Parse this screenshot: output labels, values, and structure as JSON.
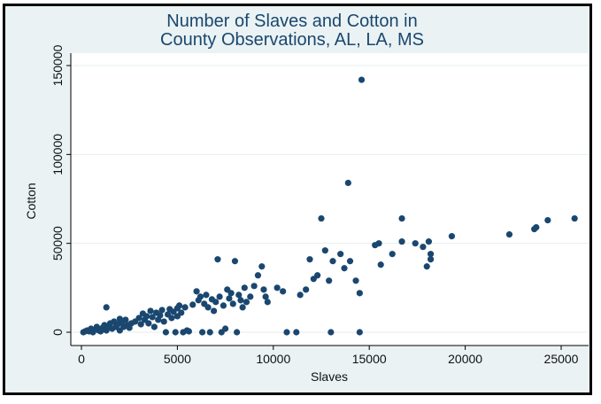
{
  "chart_data": {
    "type": "scatter",
    "title": "Number of Slaves and Cotton in",
    "subtitle": "County Observations, AL, LA, MS",
    "xlabel": "Slaves",
    "ylabel": "Cotton",
    "xlim": [
      0,
      26000
    ],
    "ylim": [
      0,
      150000
    ],
    "xticks": [
      0,
      5000,
      10000,
      15000,
      20000,
      25000
    ],
    "yticks": [
      0,
      50000,
      100000,
      150000
    ],
    "grid": true,
    "series": [
      {
        "color": "#1a476f",
        "points": [
          [
            100,
            0
          ],
          [
            200,
            500
          ],
          [
            300,
            1000
          ],
          [
            400,
            500
          ],
          [
            500,
            2000
          ],
          [
            600,
            0
          ],
          [
            700,
            1500
          ],
          [
            800,
            3000
          ],
          [
            900,
            1000
          ],
          [
            1000,
            500
          ],
          [
            1100,
            2500
          ],
          [
            1200,
            4000
          ],
          [
            1300,
            14000
          ],
          [
            1300,
            1000
          ],
          [
            1400,
            3500
          ],
          [
            1500,
            5000
          ],
          [
            1600,
            2000
          ],
          [
            1700,
            6000
          ],
          [
            1800,
            3000
          ],
          [
            1900,
            4500
          ],
          [
            2000,
            7500
          ],
          [
            2000,
            1000
          ],
          [
            2100,
            5500
          ],
          [
            2200,
            3000
          ],
          [
            2300,
            7000
          ],
          [
            2400,
            4000
          ],
          [
            2500,
            2500
          ],
          [
            2600,
            5000
          ],
          [
            2800,
            6000
          ],
          [
            3000,
            8000
          ],
          [
            3100,
            4500
          ],
          [
            3200,
            10500
          ],
          [
            3300,
            7000
          ],
          [
            3400,
            9000
          ],
          [
            3500,
            5000
          ],
          [
            3600,
            12000
          ],
          [
            3700,
            8500
          ],
          [
            3800,
            3000
          ],
          [
            3900,
            11000
          ],
          [
            4000,
            7000
          ],
          [
            4100,
            9500
          ],
          [
            4200,
            12500
          ],
          [
            4300,
            6000
          ],
          [
            4400,
            0
          ],
          [
            4500,
            10000
          ],
          [
            4600,
            13000
          ],
          [
            4700,
            8000
          ],
          [
            4800,
            11500
          ],
          [
            4900,
            0
          ],
          [
            5000,
            13500
          ],
          [
            5000,
            9000
          ],
          [
            5100,
            15000
          ],
          [
            5200,
            11000
          ],
          [
            5300,
            0
          ],
          [
            5400,
            14000
          ],
          [
            5500,
            1000
          ],
          [
            5600,
            500
          ],
          [
            5800,
            15500
          ],
          [
            6000,
            23000
          ],
          [
            6100,
            18000
          ],
          [
            6200,
            20000
          ],
          [
            6300,
            0
          ],
          [
            6400,
            16000
          ],
          [
            6500,
            21000
          ],
          [
            6600,
            14000
          ],
          [
            6700,
            0
          ],
          [
            6800,
            18500
          ],
          [
            6900,
            12000
          ],
          [
            7000,
            17000
          ],
          [
            7100,
            41000
          ],
          [
            7200,
            20000
          ],
          [
            7300,
            0
          ],
          [
            7400,
            15000
          ],
          [
            7500,
            2000
          ],
          [
            7600,
            24000
          ],
          [
            7700,
            19000
          ],
          [
            7800,
            22000
          ],
          [
            7900,
            16000
          ],
          [
            8000,
            40000
          ],
          [
            8100,
            0
          ],
          [
            8200,
            21000
          ],
          [
            8300,
            18000
          ],
          [
            8400,
            14000
          ],
          [
            8500,
            25000
          ],
          [
            8600,
            17000
          ],
          [
            8800,
            20000
          ],
          [
            9000,
            26000
          ],
          [
            9200,
            32000
          ],
          [
            9400,
            37000
          ],
          [
            9500,
            24000
          ],
          [
            9600,
            20000
          ],
          [
            9700,
            17000
          ],
          [
            10200,
            25000
          ],
          [
            10500,
            23000
          ],
          [
            10700,
            0
          ],
          [
            11200,
            0
          ],
          [
            11400,
            21000
          ],
          [
            11700,
            24000
          ],
          [
            11900,
            41000
          ],
          [
            12100,
            30000
          ],
          [
            12300,
            32000
          ],
          [
            12500,
            64000
          ],
          [
            12700,
            46000
          ],
          [
            12900,
            29000
          ],
          [
            13000,
            0
          ],
          [
            13100,
            40000
          ],
          [
            13500,
            44000
          ],
          [
            13700,
            36000
          ],
          [
            13900,
            84000
          ],
          [
            14000,
            40000
          ],
          [
            14300,
            29000
          ],
          [
            14500,
            0
          ],
          [
            14600,
            142000
          ],
          [
            14500,
            22000
          ],
          [
            15300,
            49000
          ],
          [
            15500,
            50000
          ],
          [
            15600,
            38000
          ],
          [
            16200,
            44000
          ],
          [
            16700,
            64000
          ],
          [
            16700,
            51000
          ],
          [
            17400,
            50000
          ],
          [
            17800,
            48000
          ],
          [
            18100,
            51000
          ],
          [
            18000,
            37000
          ],
          [
            18200,
            41000
          ],
          [
            18200,
            44000
          ],
          [
            19300,
            54000
          ],
          [
            22300,
            55000
          ],
          [
            23600,
            58000
          ],
          [
            23700,
            59000
          ],
          [
            24300,
            63000
          ],
          [
            25700,
            64000
          ]
        ]
      }
    ]
  }
}
